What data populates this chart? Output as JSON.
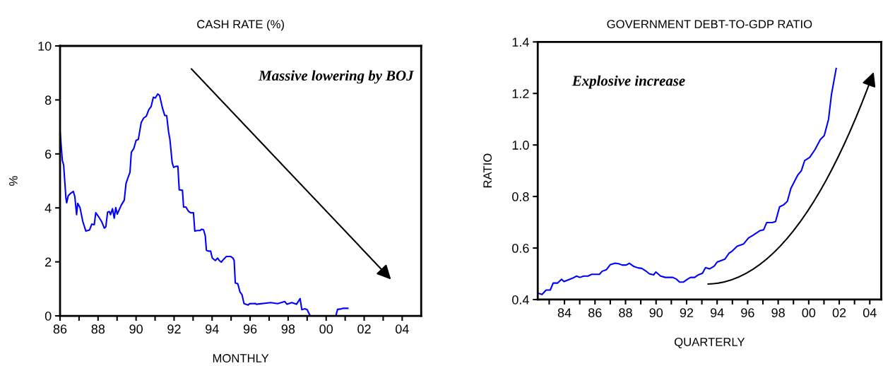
{
  "chart_data": [
    {
      "type": "line",
      "title": "CASH RATE (%)",
      "xlabel": "MONTHLY",
      "ylabel": "%",
      "annotations": [
        "Massive lowering by BOJ"
      ],
      "series": [
        {
          "color": "#0000ff",
          "x": [
            1986.0,
            1986.12,
            1986.19,
            1986.31,
            1986.35,
            1986.43,
            1986.56,
            1986.7,
            1986.78,
            1986.87,
            1986.93,
            1987.05,
            1987.2,
            1987.36,
            1987.55,
            1987.67,
            1987.8,
            1987.88,
            1988.04,
            1988.19,
            1988.33,
            1988.41,
            1988.5,
            1988.6,
            1988.66,
            1988.76,
            1988.85,
            1988.93,
            1989.01,
            1989.22,
            1989.38,
            1989.47,
            1989.59,
            1989.68,
            1989.75,
            1989.88,
            1990.0,
            1990.12,
            1990.27,
            1990.4,
            1990.54,
            1990.67,
            1990.79,
            1990.91,
            1991.01,
            1991.14,
            1991.24,
            1991.38,
            1991.51,
            1991.61,
            1991.71,
            1991.78,
            1991.9,
            1991.98,
            1992.1,
            1992.2,
            1992.27,
            1992.44,
            1992.5,
            1992.62,
            1992.75,
            1992.87,
            1993.02,
            1993.09,
            1993.24,
            1993.36,
            1993.46,
            1993.55,
            1993.64,
            1993.7,
            1993.8,
            1993.92,
            1994.01,
            1994.17,
            1994.29,
            1994.38,
            1994.48,
            1994.6,
            1994.75,
            1994.97,
            1995.1,
            1995.16,
            1995.22,
            1995.35,
            1995.47,
            1995.57,
            1995.68,
            1995.9,
            1995.96,
            1996.27,
            1996.33,
            1997.08,
            1997.45,
            1997.82,
            1997.94,
            1998.19,
            1998.44,
            1998.63,
            1998.72,
            1998.88,
            1999.0,
            1999.16,
            2000.51,
            2000.6,
            2000.81,
            2000.89,
            2001.14
          ],
          "values": [
            6.85,
            5.76,
            5.59,
            4.36,
            4.19,
            4.45,
            4.54,
            4.61,
            4.41,
            3.75,
            4.17,
            4.01,
            3.49,
            3.14,
            3.18,
            3.4,
            3.38,
            3.82,
            3.66,
            3.49,
            3.25,
            3.3,
            3.84,
            3.86,
            3.75,
            3.97,
            3.62,
            4.01,
            3.77,
            4.1,
            4.29,
            4.9,
            5.15,
            5.32,
            6.06,
            6.2,
            6.5,
            6.54,
            7.16,
            7.33,
            7.4,
            7.64,
            7.75,
            8.1,
            8.07,
            8.22,
            8.16,
            7.72,
            7.42,
            7.42,
            6.81,
            6.54,
            5.67,
            5.5,
            5.54,
            5.54,
            4.67,
            4.65,
            4.03,
            4.03,
            3.88,
            3.82,
            3.82,
            3.14,
            3.16,
            3.16,
            3.21,
            3.19,
            2.97,
            2.43,
            2.4,
            2.4,
            2.14,
            2.05,
            2.14,
            2.05,
            1.99,
            2.09,
            2.2,
            2.2,
            2.14,
            2.05,
            1.22,
            1.19,
            0.88,
            0.79,
            0.45,
            0.4,
            0.45,
            0.46,
            0.43,
            0.49,
            0.45,
            0.53,
            0.43,
            0.49,
            0.43,
            0.64,
            0.23,
            0.26,
            0.23,
            0,
            0,
            0.24,
            0.26,
            0.28,
            0.28
          ]
        }
      ],
      "xlim": [
        1986,
        2005
      ],
      "xticks": [
        {
          "value": 1986,
          "label": "86"
        },
        {
          "value": 1987,
          "label": null
        },
        {
          "value": 1988,
          "label": "88"
        },
        {
          "value": 1989,
          "label": null
        },
        {
          "value": 1990,
          "label": "90"
        },
        {
          "value": 1991,
          "label": null
        },
        {
          "value": 1992,
          "label": "92"
        },
        {
          "value": 1993,
          "label": null
        },
        {
          "value": 1994,
          "label": "94"
        },
        {
          "value": 1995,
          "label": null
        },
        {
          "value": 1996,
          "label": "96"
        },
        {
          "value": 1997,
          "label": null
        },
        {
          "value": 1998,
          "label": "98"
        },
        {
          "value": 1999,
          "label": null
        },
        {
          "value": 2000,
          "label": "00"
        },
        {
          "value": 2001,
          "label": null
        },
        {
          "value": 2002,
          "label": "02"
        },
        {
          "value": 2003,
          "label": null
        },
        {
          "value": 2004,
          "label": "04"
        }
      ],
      "ylim": [
        0,
        10
      ],
      "yticks": [
        0,
        2,
        4,
        6,
        8,
        10
      ]
    },
    {
      "type": "line",
      "title": "GOVERNMENT DEBT-TO-GDP RATIO",
      "xlabel": "QUARTERLY",
      "ylabel": "RATIO",
      "annotations": [
        "Explosive increase"
      ],
      "series": [
        {
          "color": "#0000ff",
          "x": [
            1982.27,
            1982.53,
            1982.8,
            1983.07,
            1983.26,
            1983.54,
            1983.81,
            1983.97,
            1984.49,
            1984.8,
            1985.0,
            1985.27,
            1985.54,
            1985.78,
            1986.29,
            1986.47,
            1986.75,
            1987.01,
            1987.32,
            1987.55,
            1987.78,
            1988.05,
            1988.25,
            1988.56,
            1988.82,
            1989.07,
            1989.33,
            1989.56,
            1989.84,
            1989.99,
            1990.3,
            1990.61,
            1991.1,
            1991.34,
            1991.54,
            1991.8,
            1992.06,
            1992.26,
            1992.53,
            1992.77,
            1993.04,
            1993.24,
            1993.5,
            1993.81,
            1994.01,
            1994.51,
            1994.78,
            1995.0,
            1995.31,
            1995.74,
            1996.05,
            1996.36,
            1996.79,
            1997.05,
            1997.25,
            1997.62,
            1997.83,
            1998.09,
            1998.34,
            1998.6,
            1998.83,
            1999.06,
            1999.29,
            1999.52,
            1999.73,
            2000.07,
            2000.41,
            2000.76,
            2001.02,
            2001.3,
            2001.49,
            2001.8
          ],
          "values": [
            0.425,
            0.42,
            0.437,
            0.437,
            0.464,
            0.464,
            0.479,
            0.47,
            0.482,
            0.491,
            0.486,
            0.491,
            0.491,
            0.498,
            0.498,
            0.51,
            0.516,
            0.536,
            0.541,
            0.539,
            0.534,
            0.534,
            0.541,
            0.528,
            0.523,
            0.521,
            0.511,
            0.5,
            0.496,
            0.507,
            0.491,
            0.486,
            0.486,
            0.479,
            0.468,
            0.468,
            0.479,
            0.486,
            0.486,
            0.496,
            0.502,
            0.524,
            0.519,
            0.53,
            0.546,
            0.557,
            0.58,
            0.589,
            0.607,
            0.616,
            0.639,
            0.65,
            0.667,
            0.671,
            0.699,
            0.699,
            0.703,
            0.76,
            0.767,
            0.781,
            0.831,
            0.858,
            0.884,
            0.9,
            0.939,
            0.952,
            0.982,
            1.021,
            1.037,
            1.1,
            1.196,
            1.297
          ]
        }
      ],
      "xlim": [
        1982.25,
        2004.75
      ],
      "xticks": [
        {
          "value": 1983,
          "label": null
        },
        {
          "value": 1984,
          "label": "84"
        },
        {
          "value": 1985,
          "label": null
        },
        {
          "value": 1986,
          "label": "86"
        },
        {
          "value": 1987,
          "label": null
        },
        {
          "value": 1988,
          "label": "88"
        },
        {
          "value": 1989,
          "label": null
        },
        {
          "value": 1990,
          "label": "90"
        },
        {
          "value": 1991,
          "label": null
        },
        {
          "value": 1992,
          "label": "92"
        },
        {
          "value": 1993,
          "label": null
        },
        {
          "value": 1994,
          "label": "94"
        },
        {
          "value": 1995,
          "label": null
        },
        {
          "value": 1996,
          "label": "96"
        },
        {
          "value": 1997,
          "label": null
        },
        {
          "value": 1998,
          "label": "98"
        },
        {
          "value": 1999,
          "label": null
        },
        {
          "value": 2000,
          "label": "00"
        },
        {
          "value": 2001,
          "label": null
        },
        {
          "value": 2002,
          "label": "02"
        },
        {
          "value": 2003,
          "label": null
        },
        {
          "value": 2004,
          "label": "04"
        }
      ],
      "ylim": [
        0.4,
        1.4
      ],
      "yticks": [
        0.4,
        0.6,
        0.8,
        {
          "value": 1.0,
          "label": "1.0"
        },
        1.2,
        1.4
      ]
    }
  ]
}
